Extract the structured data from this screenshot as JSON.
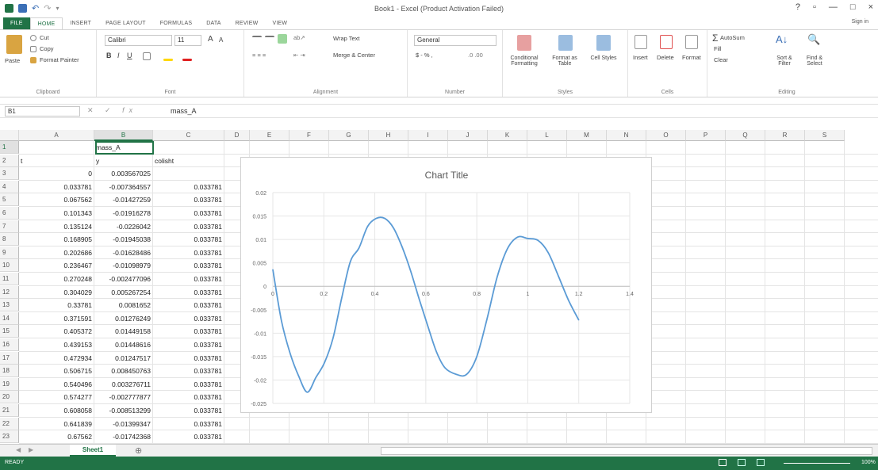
{
  "window": {
    "title": "Book1 - Excel (Product Activation Failed)",
    "help": "?",
    "restore": "▫",
    "minimize": "—",
    "maximize": "□",
    "close": "×",
    "signin": "Sign in"
  },
  "tabs": [
    "FILE",
    "HOME",
    "INSERT",
    "PAGE LAYOUT",
    "FORMULAS",
    "DATA",
    "REVIEW",
    "VIEW"
  ],
  "ribbon": {
    "clipboard": {
      "paste": "Paste",
      "cut": "Cut",
      "copy": "Copy",
      "format_painter": "Format Painter",
      "label": "Clipboard"
    },
    "font": {
      "name": "Calibri",
      "size": "11",
      "label": "Font"
    },
    "alignment": {
      "wrap": "Wrap Text",
      "merge": "Merge & Center",
      "label": "Alignment"
    },
    "number": {
      "format": "General",
      "currency": "$ - % ,",
      "label": "Number"
    },
    "styles": {
      "conditional": "Conditional Formatting",
      "format_table": "Format as Table",
      "cell_styles": "Cell Styles",
      "label": "Styles"
    },
    "cells": {
      "insert": "Insert",
      "delete": "Delete",
      "format": "Format",
      "label": "Cells"
    },
    "editing": {
      "autosum": "AutoSum",
      "fill": "Fill",
      "clear": "Clear",
      "sort": "Sort & Filter",
      "find": "Find & Select",
      "label": "Editing"
    }
  },
  "formula_bar": {
    "name_box": "B1",
    "fx": "fx",
    "value": "mass_A"
  },
  "columns": [
    "A",
    "B",
    "C",
    "D",
    "E",
    "F",
    "G",
    "H",
    "I",
    "J",
    "K",
    "L",
    "M",
    "N",
    "O",
    "P",
    "Q",
    "R",
    "S"
  ],
  "rows": [
    {
      "n": "1",
      "a": "",
      "b": "mass_A",
      "c": ""
    },
    {
      "n": "2",
      "a": "t",
      "b": "y",
      "c": "colisht"
    },
    {
      "n": "3",
      "a": "0",
      "b": "0.003567025",
      "c": ""
    },
    {
      "n": "4",
      "a": "0.033781",
      "b": "-0.007364557",
      "c": "0.033781"
    },
    {
      "n": "5",
      "a": "0.067562",
      "b": "-0.01427259",
      "c": "0.033781"
    },
    {
      "n": "6",
      "a": "0.101343",
      "b": "-0.01916278",
      "c": "0.033781"
    },
    {
      "n": "7",
      "a": "0.135124",
      "b": "-0.0226042",
      "c": "0.033781"
    },
    {
      "n": "8",
      "a": "0.168905",
      "b": "-0.01945038",
      "c": "0.033781"
    },
    {
      "n": "9",
      "a": "0.202686",
      "b": "-0.01628486",
      "c": "0.033781"
    },
    {
      "n": "10",
      "a": "0.236467",
      "b": "-0.01098979",
      "c": "0.033781"
    },
    {
      "n": "11",
      "a": "0.270248",
      "b": "-0.002477096",
      "c": "0.033781"
    },
    {
      "n": "12",
      "a": "0.304029",
      "b": "0.005267254",
      "c": "0.033781"
    },
    {
      "n": "13",
      "a": "0.33781",
      "b": "0.0081652",
      "c": "0.033781"
    },
    {
      "n": "14",
      "a": "0.371591",
      "b": "0.01276249",
      "c": "0.033781"
    },
    {
      "n": "15",
      "a": "0.405372",
      "b": "0.01449158",
      "c": "0.033781"
    },
    {
      "n": "16",
      "a": "0.439153",
      "b": "0.01448616",
      "c": "0.033781"
    },
    {
      "n": "17",
      "a": "0.472934",
      "b": "0.01247517",
      "c": "0.033781"
    },
    {
      "n": "18",
      "a": "0.506715",
      "b": "0.008450763",
      "c": "0.033781"
    },
    {
      "n": "19",
      "a": "0.540496",
      "b": "0.003276711",
      "c": "0.033781"
    },
    {
      "n": "20",
      "a": "0.574277",
      "b": "-0.002777877",
      "c": "0.033781"
    },
    {
      "n": "21",
      "a": "0.608058",
      "b": "-0.008513299",
      "c": "0.033781"
    },
    {
      "n": "22",
      "a": "0.641839",
      "b": "-0.01399347",
      "c": "0.033781"
    },
    {
      "n": "23",
      "a": "0.67562",
      "b": "-0.01742368",
      "c": "0.033781"
    }
  ],
  "chart_data": {
    "type": "line",
    "title": "Chart Title",
    "xlim": [
      0,
      1.4
    ],
    "ylim": [
      -0.025,
      0.02
    ],
    "x_ticks": [
      "0",
      "0.2",
      "0.4",
      "0.6",
      "0.8",
      "1",
      "1.2",
      "1.4"
    ],
    "y_ticks": [
      "0.02",
      "0.015",
      "0.01",
      "0.005",
      "0",
      "-0.005",
      "-0.01",
      "-0.015",
      "-0.02",
      "-0.025"
    ],
    "x": [
      0,
      0.033781,
      0.067562,
      0.101343,
      0.135124,
      0.168905,
      0.202686,
      0.236467,
      0.270248,
      0.304029,
      0.33781,
      0.371591,
      0.405372,
      0.439153,
      0.472934,
      0.506715,
      0.540496,
      0.574277,
      0.608058,
      0.641839,
      0.67562,
      0.72,
      0.76,
      0.8,
      0.84,
      0.88,
      0.92,
      0.96,
      1.0,
      1.04,
      1.08,
      1.12,
      1.16,
      1.2
    ],
    "y": [
      0.003567025,
      -0.007364557,
      -0.01427259,
      -0.01916278,
      -0.0226042,
      -0.01945038,
      -0.01628486,
      -0.01098979,
      -0.002477096,
      0.005267254,
      0.0081652,
      0.01276249,
      0.01449158,
      0.01448616,
      0.01247517,
      0.008450763,
      0.003276711,
      -0.002777877,
      -0.008513299,
      -0.01399347,
      -0.01742368,
      -0.0188,
      -0.0188,
      -0.015,
      -0.007,
      0.002,
      0.008,
      0.0105,
      0.0102,
      0.0098,
      0.0072,
      0.0022,
      -0.003,
      -0.0072
    ],
    "color": "#5b9bd5"
  },
  "sheet": {
    "tab": "Sheet1",
    "add": "⊕"
  },
  "status": {
    "ready": "READY",
    "zoom": "100%"
  },
  "colors": {
    "accent": "#217346"
  }
}
